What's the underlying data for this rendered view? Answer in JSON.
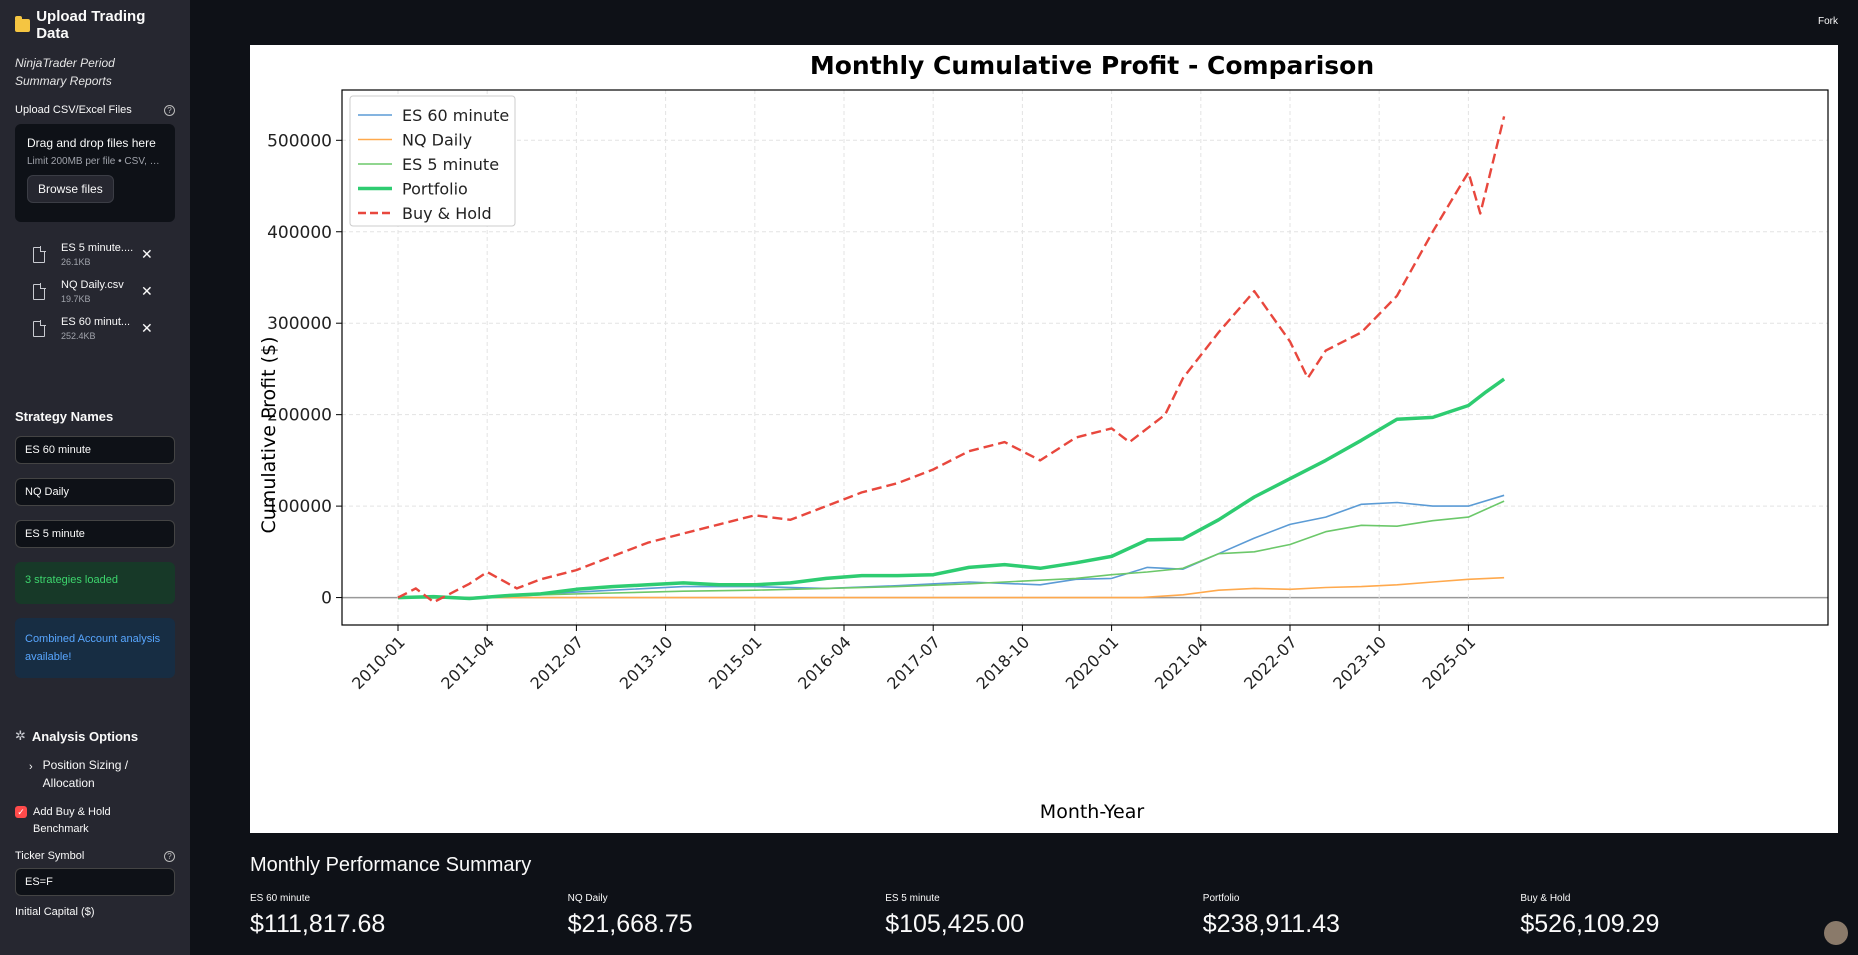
{
  "sidebar": {
    "title": "Upload Trading Data",
    "subtitle": "NinjaTrader Period Summary Reports",
    "upload_label": "Upload CSV/Excel Files",
    "dropzone": {
      "title": "Drag and drop files here",
      "limit": "Limit 200MB per file • CSV, X..."
    },
    "browse_label": "Browse files",
    "files": [
      {
        "name": "ES 5 minute....",
        "size": "26.1KB"
      },
      {
        "name": "NQ Daily.csv",
        "size": "19.7KB"
      },
      {
        "name": "ES 60 minut...",
        "size": "252.4KB"
      }
    ],
    "strategy_names_title": "Strategy Names",
    "strategy_inputs": [
      "ES 60 minute",
      "NQ Daily",
      "ES 5 minute"
    ],
    "success_msg": "3 strategies loaded",
    "info_msg": "Combined Account analysis available!",
    "analysis_title": "Analysis Options",
    "expander_label": "Position Sizing / Allocation",
    "checkbox_label": "Add Buy & Hold Benchmark",
    "ticker_label": "Ticker Symbol",
    "ticker_value": "ES=F",
    "capital_label": "Initial Capital ($)"
  },
  "topbar": {
    "fork": "Fork"
  },
  "summary": {
    "title": "Monthly Performance Summary",
    "metrics": [
      {
        "label": "ES 60 minute",
        "value": "$111,817.68"
      },
      {
        "label": "NQ Daily",
        "value": "$21,668.75"
      },
      {
        "label": "ES 5 minute",
        "value": "$105,425.00"
      },
      {
        "label": "Portfolio",
        "value": "$238,911.43"
      },
      {
        "label": "Buy & Hold",
        "value": "$526,109.29"
      }
    ]
  },
  "chart_data": {
    "type": "line",
    "title": "Monthly Cumulative Profit - Comparison",
    "xlabel": "Month-Year",
    "ylabel": "Cumulative Profit ($)",
    "x_ticks": [
      "2010-01",
      "2011-04",
      "2012-07",
      "2013-10",
      "2015-01",
      "2016-04",
      "2017-07",
      "2018-10",
      "2020-01",
      "2021-04",
      "2022-07",
      "2023-10",
      "2025-01"
    ],
    "y_ticks": [
      0,
      100000,
      200000,
      300000,
      400000,
      500000
    ],
    "ylim": [
      -30000,
      555000
    ],
    "grid": true,
    "legend_position": "top-left",
    "series": [
      {
        "name": "ES 60 minute",
        "color": "#5b9bd5",
        "width": 1.6,
        "dash": false,
        "points": [
          [
            "2010-01",
            0
          ],
          [
            "2011-01",
            0
          ],
          [
            "2012-01",
            4000
          ],
          [
            "2013-01",
            8000
          ],
          [
            "2014-01",
            12000
          ],
          [
            "2015-01",
            12000
          ],
          [
            "2016-01",
            10000
          ],
          [
            "2017-01",
            13000
          ],
          [
            "2018-01",
            17000
          ],
          [
            "2019-01",
            14000
          ],
          [
            "2019-07",
            20000
          ],
          [
            "2020-01",
            21000
          ],
          [
            "2020-07",
            33000
          ],
          [
            "2021-01",
            31000
          ],
          [
            "2021-07",
            48000
          ],
          [
            "2022-01",
            65000
          ],
          [
            "2022-07",
            80000
          ],
          [
            "2023-01",
            88000
          ],
          [
            "2023-07",
            102000
          ],
          [
            "2024-01",
            104000
          ],
          [
            "2024-07",
            100000
          ],
          [
            "2025-01",
            100000
          ],
          [
            "2025-07",
            111817.68
          ]
        ]
      },
      {
        "name": "NQ Daily",
        "color": "#ffa94d",
        "width": 1.6,
        "dash": false,
        "points": [
          [
            "2010-01",
            0
          ],
          [
            "2014-01",
            0
          ],
          [
            "2018-01",
            0
          ],
          [
            "2020-06",
            0
          ],
          [
            "2021-01",
            3000
          ],
          [
            "2021-07",
            8000
          ],
          [
            "2022-01",
            10000
          ],
          [
            "2022-07",
            9000
          ],
          [
            "2023-01",
            11000
          ],
          [
            "2023-07",
            12000
          ],
          [
            "2024-01",
            14000
          ],
          [
            "2024-07",
            17000
          ],
          [
            "2025-01",
            20000
          ],
          [
            "2025-07",
            21668.75
          ]
        ]
      },
      {
        "name": "ES 5 minute",
        "color": "#6cc86a",
        "width": 1.6,
        "dash": false,
        "points": [
          [
            "2010-01",
            0
          ],
          [
            "2011-01",
            -1000
          ],
          [
            "2012-01",
            3000
          ],
          [
            "2013-01",
            5000
          ],
          [
            "2014-01",
            7000
          ],
          [
            "2015-01",
            8000
          ],
          [
            "2016-01",
            10000
          ],
          [
            "2017-01",
            12000
          ],
          [
            "2018-01",
            15000
          ],
          [
            "2019-01",
            19000
          ],
          [
            "2019-07",
            21000
          ],
          [
            "2020-01",
            25000
          ],
          [
            "2020-07",
            28000
          ],
          [
            "2021-01",
            32000
          ],
          [
            "2021-07",
            48000
          ],
          [
            "2022-01",
            50000
          ],
          [
            "2022-07",
            58000
          ],
          [
            "2023-01",
            72000
          ],
          [
            "2023-07",
            79000
          ],
          [
            "2024-01",
            78000
          ],
          [
            "2024-07",
            84000
          ],
          [
            "2025-01",
            88000
          ],
          [
            "2025-07",
            105425.0
          ]
        ]
      },
      {
        "name": "Portfolio",
        "color": "#2ecc71",
        "width": 3.5,
        "dash": false,
        "points": [
          [
            "2010-01",
            0
          ],
          [
            "2010-07",
            1000
          ],
          [
            "2011-01",
            -1000
          ],
          [
            "2011-07",
            2000
          ],
          [
            "2012-01",
            4000
          ],
          [
            "2012-07",
            9000
          ],
          [
            "2013-01",
            12000
          ],
          [
            "2013-07",
            14000
          ],
          [
            "2014-01",
            16000
          ],
          [
            "2014-07",
            14000
          ],
          [
            "2015-01",
            14000
          ],
          [
            "2015-07",
            16000
          ],
          [
            "2016-01",
            21000
          ],
          [
            "2016-07",
            24000
          ],
          [
            "2017-01",
            24000
          ],
          [
            "2017-07",
            25000
          ],
          [
            "2018-01",
            33000
          ],
          [
            "2018-07",
            36000
          ],
          [
            "2019-01",
            32000
          ],
          [
            "2019-07",
            38000
          ],
          [
            "2020-01",
            45000
          ],
          [
            "2020-07",
            63000
          ],
          [
            "2021-01",
            64000
          ],
          [
            "2021-07",
            85000
          ],
          [
            "2022-01",
            110000
          ],
          [
            "2022-07",
            130000
          ],
          [
            "2023-01",
            150000
          ],
          [
            "2023-07",
            172000
          ],
          [
            "2024-01",
            195000
          ],
          [
            "2024-07",
            197000
          ],
          [
            "2025-01",
            210000
          ],
          [
            "2025-04",
            225000
          ],
          [
            "2025-07",
            238911.43
          ]
        ]
      },
      {
        "name": "Buy & Hold",
        "color": "#e8473d",
        "width": 2.4,
        "dash": true,
        "points": [
          [
            "2010-01",
            0
          ],
          [
            "2010-04",
            10000
          ],
          [
            "2010-07",
            -5000
          ],
          [
            "2011-01",
            15000
          ],
          [
            "2011-04",
            28000
          ],
          [
            "2011-09",
            10000
          ],
          [
            "2012-01",
            20000
          ],
          [
            "2012-07",
            30000
          ],
          [
            "2013-01",
            45000
          ],
          [
            "2013-07",
            60000
          ],
          [
            "2014-01",
            70000
          ],
          [
            "2014-07",
            80000
          ],
          [
            "2015-01",
            90000
          ],
          [
            "2015-07",
            85000
          ],
          [
            "2016-01",
            100000
          ],
          [
            "2016-07",
            115000
          ],
          [
            "2017-01",
            125000
          ],
          [
            "2017-07",
            140000
          ],
          [
            "2018-01",
            160000
          ],
          [
            "2018-07",
            170000
          ],
          [
            "2019-01",
            150000
          ],
          [
            "2019-07",
            175000
          ],
          [
            "2020-01",
            185000
          ],
          [
            "2020-04",
            170000
          ],
          [
            "2020-10",
            200000
          ],
          [
            "2021-01",
            240000
          ],
          [
            "2021-07",
            290000
          ],
          [
            "2022-01",
            335000
          ],
          [
            "2022-07",
            280000
          ],
          [
            "2022-10",
            240000
          ],
          [
            "2023-01",
            270000
          ],
          [
            "2023-07",
            290000
          ],
          [
            "2024-01",
            330000
          ],
          [
            "2024-07",
            400000
          ],
          [
            "2025-01",
            465000
          ],
          [
            "2025-03",
            420000
          ],
          [
            "2025-07",
            526109.29
          ]
        ]
      }
    ]
  }
}
